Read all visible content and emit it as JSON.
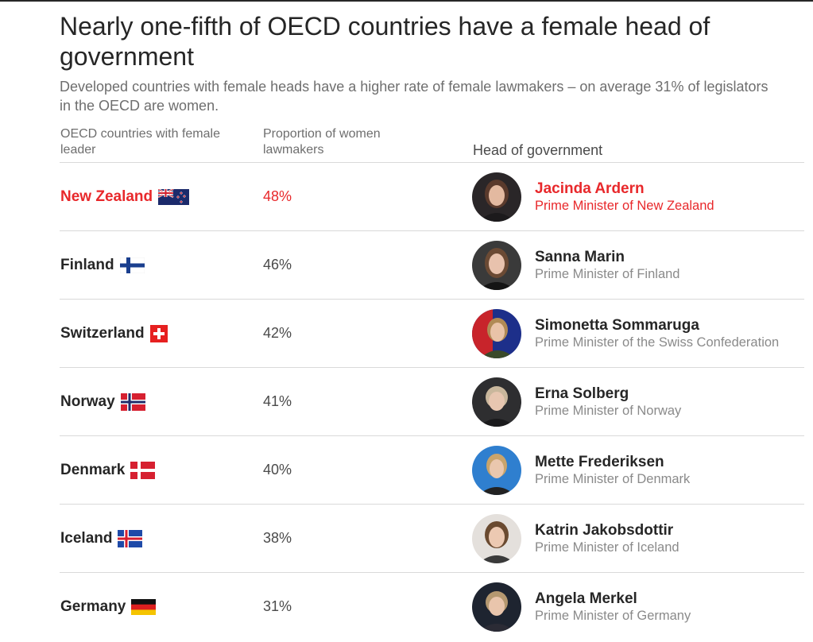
{
  "title": "Nearly one-fifth of OECD countries have a female head of government",
  "subtitle": "Developed countries with female heads have a higher rate of female lawmakers – on average 31% of legislators in the OECD are women.",
  "columns": {
    "country": "OECD countries with female leader",
    "proportion": "Proportion of women lawmakers",
    "head": "Head of government"
  },
  "colors": {
    "highlight": "#e8282b",
    "text": "#262626",
    "muted": "#8a8a8a"
  },
  "rows": [
    {
      "country": "New Zealand",
      "proportion": "48%",
      "name": "Jacinda Ardern",
      "role": "Prime Minister of New Zealand",
      "flag": "new-zealand-flag-icon",
      "highlighted": true
    },
    {
      "country": "Finland",
      "proportion": "46%",
      "name": "Sanna Marin",
      "role": "Prime Minister of Finland",
      "flag": "finland-flag-icon",
      "highlighted": false
    },
    {
      "country": "Switzerland",
      "proportion": "42%",
      "name": "Simonetta Sommaruga",
      "role": "Prime Minister of the Swiss Confederation",
      "flag": "switzerland-flag-icon",
      "highlighted": false
    },
    {
      "country": "Norway",
      "proportion": "41%",
      "name": "Erna Solberg",
      "role": "Prime Minister of Norway",
      "flag": "norway-flag-icon",
      "highlighted": false
    },
    {
      "country": "Denmark",
      "proportion": "40%",
      "name": "Mette Frederiksen",
      "role": "Prime Minister of Denmark",
      "flag": "denmark-flag-icon",
      "highlighted": false
    },
    {
      "country": "Iceland",
      "proportion": "38%",
      "name": "Katrin Jakobsdottir",
      "role": "Prime Minister of Iceland",
      "flag": "iceland-flag-icon",
      "highlighted": false
    },
    {
      "country": "Germany",
      "proportion": "31%",
      "name": "Angela Merkel",
      "role": "Prime Minister of Germany",
      "flag": "germany-flag-icon",
      "highlighted": false
    }
  ]
}
